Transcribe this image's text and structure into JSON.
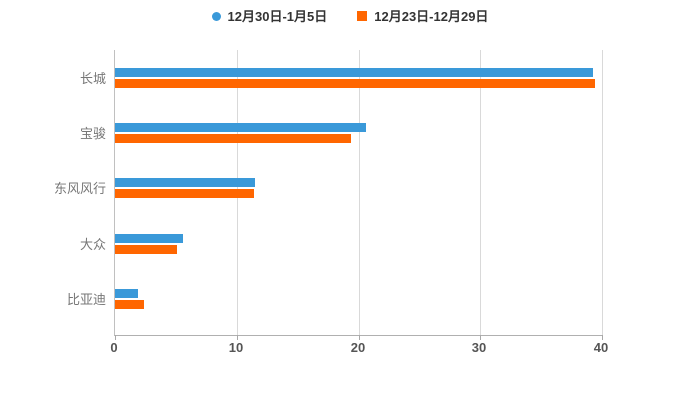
{
  "chart_data": {
    "type": "bar",
    "orientation": "horizontal",
    "title": "",
    "categories": [
      "长城",
      "宝骏",
      "东风风行",
      "大众",
      "比亚迪"
    ],
    "series": [
      {
        "name": "12月30日-1月5日",
        "marker": "circle",
        "color": "#3a99d9",
        "values": [
          39.3,
          20.6,
          11.5,
          5.6,
          1.9
        ]
      },
      {
        "name": "12月23日-12月29日",
        "marker": "square",
        "color": "#ff6600",
        "values": [
          39.4,
          19.4,
          11.4,
          5.1,
          2.4
        ]
      }
    ],
    "xlabel": "",
    "ylabel": "",
    "xlim": [
      0,
      40
    ],
    "xticks": [
      0,
      10,
      20,
      30,
      40
    ],
    "grid": true,
    "legend_position": "top-center"
  },
  "colors": {
    "background": "#ffffff",
    "gridline": "#d9d9d9",
    "axis": "#b0b0b0",
    "legend_text": "#333333",
    "category_text": "#777777",
    "tick_text": "#555555"
  }
}
